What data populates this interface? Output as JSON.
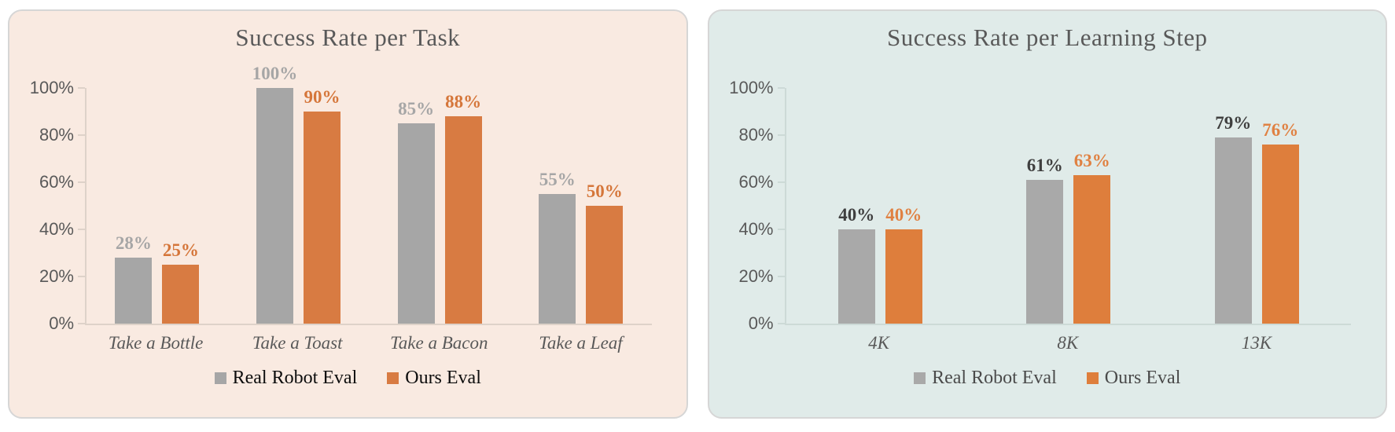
{
  "chart_data": [
    {
      "type": "bar",
      "title": "Success Rate per Task",
      "categories": [
        "Take a Bottle",
        "Take a Toast",
        "Take a Bacon",
        "Take a Leaf"
      ],
      "series": [
        {
          "name": "Real Robot Eval",
          "color": "#A6A6A6",
          "label_color": "#A6A6A6",
          "values": [
            28,
            100,
            85,
            55
          ],
          "labels": [
            "28%",
            "100%",
            "85%",
            "55%"
          ]
        },
        {
          "name": "Ours Eval",
          "color": "#D87B42",
          "label_color": "#D5763A",
          "values": [
            25,
            90,
            88,
            50
          ],
          "labels": [
            "25%",
            "90%",
            "88%",
            "50%"
          ]
        }
      ],
      "ytick_values": [
        0,
        20,
        40,
        60,
        80,
        100
      ],
      "ytick_labels": [
        "0%",
        "20%",
        "40%",
        "60%",
        "80%",
        "100%"
      ],
      "ylim": [
        0,
        100
      ],
      "grid": false,
      "legend_position": "bottom",
      "colors": {
        "card_bg": "#F9EAE1",
        "card_border": "#D6D6D6",
        "title": "#595959",
        "axis": "#DED2C9",
        "tick_label": "#595959",
        "x_label": "#595959",
        "legend_text": "#0D0D0D"
      }
    },
    {
      "type": "bar",
      "title": "Success Rate per Learning Step",
      "categories": [
        "4K",
        "8K",
        "13K"
      ],
      "series": [
        {
          "name": "Real Robot Eval",
          "color": "#A9A9A9",
          "label_color": "#3F3F3F",
          "values": [
            40,
            61,
            79
          ],
          "labels": [
            "40%",
            "61%",
            "79%"
          ]
        },
        {
          "name": "Ours Eval",
          "color": "#DE7E3C",
          "label_color": "#E08142",
          "values": [
            40,
            63,
            76
          ],
          "labels": [
            "40%",
            "63%",
            "76%"
          ]
        }
      ],
      "ytick_values": [
        0,
        20,
        40,
        60,
        80,
        100
      ],
      "ytick_labels": [
        "0%",
        "20%",
        "40%",
        "60%",
        "80%",
        "100%"
      ],
      "ylim": [
        0,
        100
      ],
      "grid": false,
      "legend_position": "bottom",
      "colors": {
        "card_bg": "#E0EBE9",
        "card_border": "#D6D6D6",
        "title": "#595959",
        "axis": "#CDDAD7",
        "tick_label": "#595959",
        "x_label": "#595959",
        "legend_text": "#4A4A4A"
      }
    }
  ]
}
